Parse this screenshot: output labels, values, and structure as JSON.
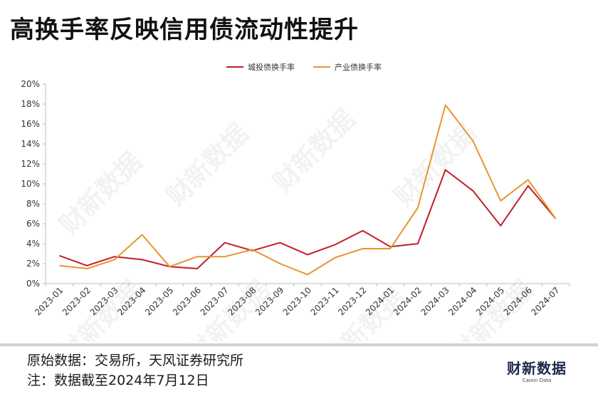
{
  "title": "高换手率反映信用债流动性提升",
  "chart_data": {
    "type": "line",
    "title": "高换手率反映信用债流动性提升",
    "categories": [
      "2023-01",
      "2023-02",
      "2023-03",
      "2023-04",
      "2023-05",
      "2023-06",
      "2023-07",
      "2023-08",
      "2023-09",
      "2023-10",
      "2023-11",
      "2023-12",
      "2024-01",
      "2024-02",
      "2024-03",
      "2024-04",
      "2024-05",
      "2024-06",
      "2024-07"
    ],
    "series": [
      {
        "name": "城投债换手率",
        "color": "#c0202a",
        "values": [
          2.8,
          1.8,
          2.7,
          2.4,
          1.7,
          1.5,
          4.1,
          3.3,
          4.1,
          2.9,
          3.9,
          5.3,
          3.7,
          4.0,
          11.4,
          9.3,
          5.8,
          9.8,
          6.5
        ]
      },
      {
        "name": "产业债换手率",
        "color": "#e8952e",
        "values": [
          1.8,
          1.5,
          2.4,
          4.9,
          1.7,
          2.7,
          2.7,
          3.4,
          2.0,
          0.9,
          2.6,
          3.5,
          3.5,
          7.6,
          17.9,
          14.3,
          8.3,
          10.4,
          6.5
        ]
      }
    ],
    "y_ticks": [
      "0%",
      "2%",
      "4%",
      "6%",
      "8%",
      "10%",
      "12%",
      "14%",
      "16%",
      "18%",
      "20%"
    ],
    "ylim": [
      0,
      20
    ],
    "xlabel": "",
    "ylabel": "",
    "legend_position": "top-center",
    "grid": false
  },
  "source": {
    "line1": "原始数据：交易所，天风证券研究所",
    "line2": "注：数据截至2024年7月12日"
  },
  "logo": {
    "main": "财新数据",
    "sub": "Caixin Data"
  },
  "watermark": "财新数据"
}
